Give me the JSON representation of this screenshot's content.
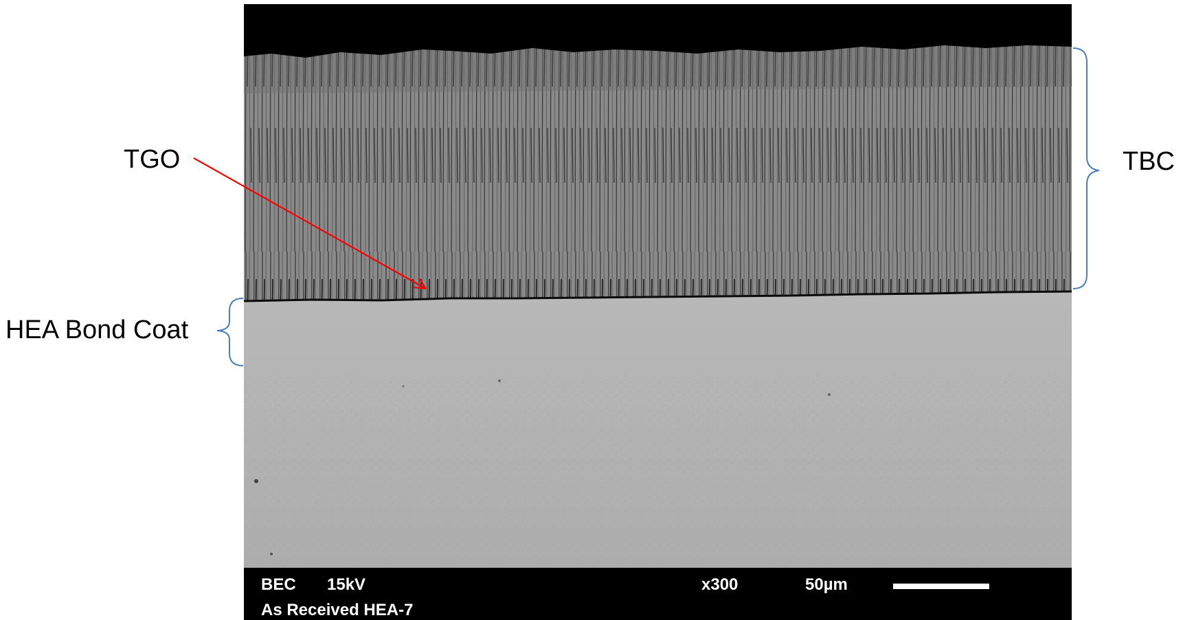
{
  "figure": {
    "annotations": {
      "tgo_label": "TGO",
      "tbc_label": "TBC",
      "bond_coat_label": "HEA Bond Coat"
    },
    "databar": {
      "mode": "BEC",
      "voltage": "15kV",
      "magnification": "x300",
      "scale_label": "50µm",
      "sample": "As Received HEA-7"
    },
    "colors": {
      "arrow": "#ff0000",
      "bracket": "#4a7ebb",
      "background": "#000000",
      "coating": "#8c8c8c",
      "substrate": "#b4b4b4"
    }
  }
}
